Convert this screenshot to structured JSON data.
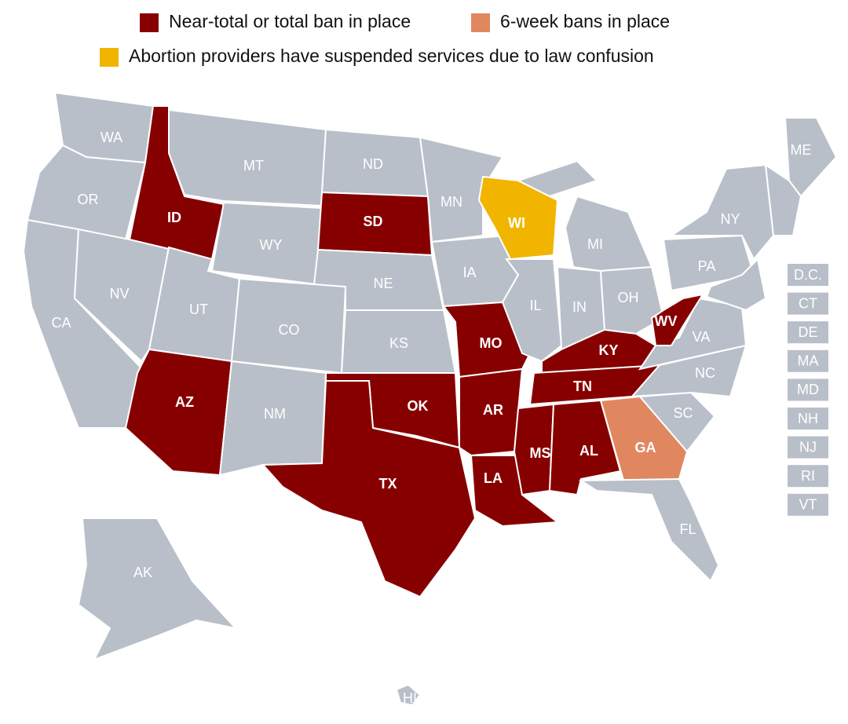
{
  "legend": [
    {
      "label": "Near-total or total  ban in place",
      "color": "#870000"
    },
    {
      "label": "6-week bans in place",
      "color": "#e0875f"
    },
    {
      "label": "Abortion providers have suspended services due to law confusion",
      "color": "#f1b500"
    }
  ],
  "default_color": "#b9bfc9",
  "states": [
    {
      "label": "WA",
      "status": null
    },
    {
      "label": "OR",
      "status": null
    },
    {
      "label": "CA",
      "status": null
    },
    {
      "label": "NV",
      "status": null
    },
    {
      "label": "ID",
      "status": 0
    },
    {
      "label": "MT",
      "status": null
    },
    {
      "label": "WY",
      "status": null
    },
    {
      "label": "UT",
      "status": null
    },
    {
      "label": "AZ",
      "status": 0
    },
    {
      "label": "CO",
      "status": null
    },
    {
      "label": "NM",
      "status": null
    },
    {
      "label": "ND",
      "status": null
    },
    {
      "label": "SD",
      "status": 0
    },
    {
      "label": "NE",
      "status": null
    },
    {
      "label": "KS",
      "status": null
    },
    {
      "label": "OK",
      "status": 0
    },
    {
      "label": "TX",
      "status": 0
    },
    {
      "label": "MN",
      "status": null
    },
    {
      "label": "IA",
      "status": null
    },
    {
      "label": "MO",
      "status": 0
    },
    {
      "label": "AR",
      "status": 0
    },
    {
      "label": "LA",
      "status": 0
    },
    {
      "label": "WI",
      "status": 2
    },
    {
      "label": "IL",
      "status": null
    },
    {
      "label": "MI",
      "status": null
    },
    {
      "label": "IN",
      "status": null
    },
    {
      "label": "OH",
      "status": null
    },
    {
      "label": "KY",
      "status": 0
    },
    {
      "label": "TN",
      "status": 0
    },
    {
      "label": "MS",
      "status": 0
    },
    {
      "label": "AL",
      "status": 0
    },
    {
      "label": "GA",
      "status": 1
    },
    {
      "label": "FL",
      "status": null
    },
    {
      "label": "SC",
      "status": null
    },
    {
      "label": "NC",
      "status": null
    },
    {
      "label": "VA",
      "status": null
    },
    {
      "label": "WV",
      "status": 0
    },
    {
      "label": "PA",
      "status": null
    },
    {
      "label": "NY",
      "status": null
    },
    {
      "label": "ME",
      "status": null
    },
    {
      "label": "AK",
      "status": null
    },
    {
      "label": "HI",
      "status": null
    }
  ],
  "small_states": [
    "D.C.",
    "CT",
    "DE",
    "MA",
    "MD",
    "NH",
    "NJ",
    "RI",
    "VT"
  ]
}
